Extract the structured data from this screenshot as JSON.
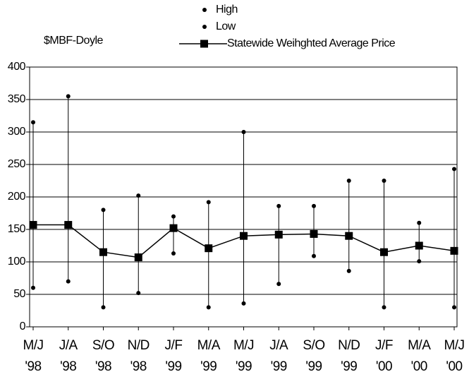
{
  "chart_data": {
    "type": "high-low-line",
    "y_label": "$MBF-Doyle",
    "categories": [
      [
        "M/J",
        "'98"
      ],
      [
        "J/A",
        "'98"
      ],
      [
        "S/O",
        "'98"
      ],
      [
        "N/D",
        "'98"
      ],
      [
        "J/F",
        "'99"
      ],
      [
        "M/A",
        "'99"
      ],
      [
        "M/J",
        "'99"
      ],
      [
        "J/A",
        "'99"
      ],
      [
        "S/O",
        "'99"
      ],
      [
        "N/D",
        "'99"
      ],
      [
        "J/F",
        "'00"
      ],
      [
        "M/A",
        "'00"
      ],
      [
        "M/J",
        "'00"
      ]
    ],
    "series": [
      {
        "name": "High",
        "color": "#000000",
        "values": [
          315,
          355,
          180,
          202,
          170,
          192,
          300,
          186,
          186,
          225,
          225,
          160,
          243
        ]
      },
      {
        "name": "Low",
        "color": "#000000",
        "values": [
          60,
          70,
          30,
          52,
          113,
          30,
          36,
          66,
          109,
          86,
          30,
          101,
          30
        ]
      },
      {
        "name": "Statewide Weihghted Average Price",
        "color": "#000000",
        "values": [
          157,
          157,
          115,
          107,
          152,
          121,
          140,
          142,
          143,
          140,
          115,
          125,
          117
        ]
      }
    ],
    "ylim": [
      0,
      400
    ],
    "yticks": [
      0,
      50,
      100,
      150,
      200,
      250,
      300,
      350,
      400
    ],
    "grid": true
  }
}
